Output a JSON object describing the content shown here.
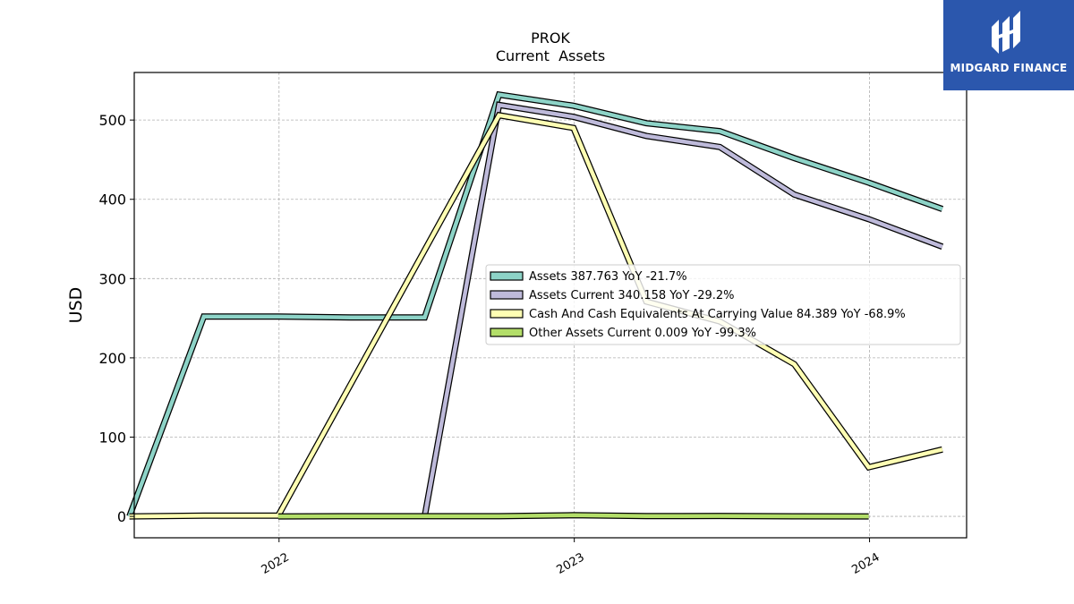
{
  "chart_data": {
    "type": "line",
    "title": "PROK",
    "subtitle": "Current  Assets",
    "ylabel": "USD",
    "xlabel": "",
    "ylim": [
      -27,
      560
    ],
    "xlim": [
      "2021-07-06",
      "2024-04-30"
    ],
    "grid": true,
    "legend_position": "center-right",
    "x_ticks": [
      "2022",
      "2023",
      "2024"
    ],
    "x_tick_dates": [
      "2022-01-01",
      "2023-01-01",
      "2024-01-01"
    ],
    "y_ticks": [
      0,
      100,
      200,
      300,
      400,
      500
    ],
    "series": [
      {
        "name": "Assets",
        "legend_label": "Assets  387.763 YoY -21.7%",
        "color": "#8dd3c7",
        "points": [
          [
            "2021-06-30",
            0
          ],
          [
            "2021-09-30",
            252
          ],
          [
            "2021-12-31",
            252
          ],
          [
            "2022-03-31",
            251
          ],
          [
            "2022-06-30",
            251
          ],
          [
            "2022-09-30",
            532
          ],
          [
            "2022-12-31",
            518
          ],
          [
            "2023-03-31",
            496
          ],
          [
            "2023-06-30",
            486
          ],
          [
            "2023-09-30",
            452
          ],
          [
            "2023-12-31",
            421
          ],
          [
            "2024-03-31",
            387.763
          ]
        ]
      },
      {
        "name": "Assets Current",
        "legend_label": "Assets Current  340.158 YoY -29.2%",
        "color": "#bebada",
        "points": [
          [
            "2022-06-30",
            0
          ],
          [
            "2022-09-30",
            519
          ],
          [
            "2022-12-31",
            504
          ],
          [
            "2023-03-31",
            480
          ],
          [
            "2023-06-30",
            466
          ],
          [
            "2023-09-30",
            406
          ],
          [
            "2023-12-31",
            375
          ],
          [
            "2024-03-31",
            340.158
          ]
        ]
      },
      {
        "name": "Cash And Cash Equivalents At Carrying Value",
        "legend_label": "Cash And Cash Equivalents At Carrying Value  84.389 YoY -68.9%",
        "color": "#ffffb3",
        "points": [
          [
            "2021-06-30",
            0
          ],
          [
            "2021-09-30",
            1
          ],
          [
            "2021-12-31",
            1
          ],
          [
            "2022-09-30",
            506
          ],
          [
            "2022-12-31",
            490
          ],
          [
            "2023-03-31",
            271
          ],
          [
            "2023-06-30",
            246
          ],
          [
            "2023-09-30",
            192
          ],
          [
            "2023-12-31",
            62
          ],
          [
            "2024-03-31",
            84.389
          ]
        ]
      },
      {
        "name": "Other Assets Current",
        "legend_label": "Other Assets Current  0.009 YoY -99.3%",
        "color": "#b3de69",
        "points": [
          [
            "2021-12-31",
            0
          ],
          [
            "2022-03-31",
            0.2
          ],
          [
            "2022-06-30",
            0.2
          ],
          [
            "2022-09-30",
            0.2
          ],
          [
            "2022-12-31",
            1.5
          ],
          [
            "2023-03-31",
            0.3
          ],
          [
            "2023-06-30",
            0.5
          ],
          [
            "2023-09-30",
            0.1
          ],
          [
            "2023-12-31",
            0.009
          ]
        ]
      }
    ]
  },
  "logo": {
    "text": "MIDGARD FINANCE"
  }
}
